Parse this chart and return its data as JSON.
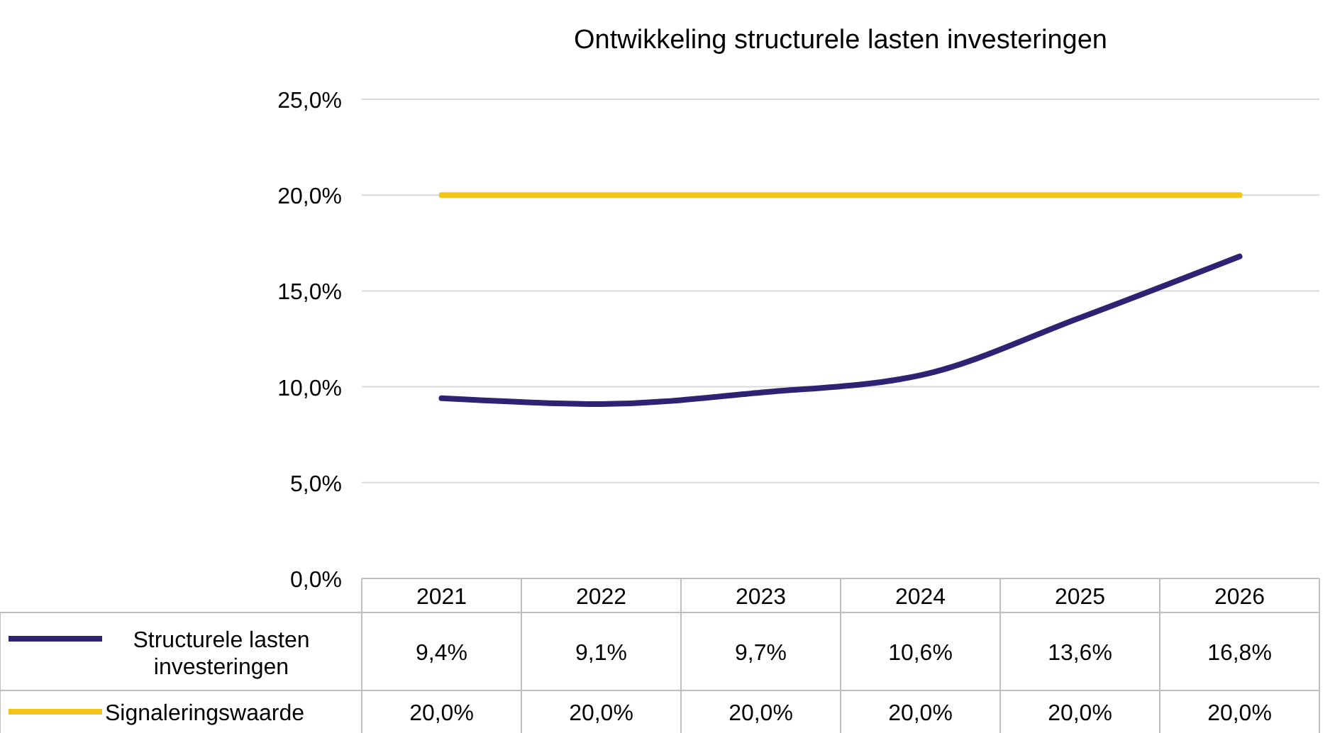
{
  "chart_data": {
    "type": "line",
    "title": "Ontwikkeling structurele lasten investeringen",
    "categories": [
      "2021",
      "2022",
      "2023",
      "2024",
      "2025",
      "2026"
    ],
    "series": [
      {
        "name": "Structurele lasten investeringen",
        "color": "#2e2372",
        "values": [
          9.4,
          9.1,
          9.7,
          10.6,
          13.6,
          16.8
        ],
        "value_labels": [
          "9,4%",
          "9,1%",
          "9,7%",
          "10,6%",
          "13,6%",
          "16,8%"
        ]
      },
      {
        "name": "Signaleringswaarde",
        "color": "#f0c419",
        "values": [
          20,
          20,
          20,
          20,
          20,
          20
        ],
        "value_labels": [
          "20,0%",
          "20,0%",
          "20,0%",
          "20,0%",
          "20,0%",
          "20,0%"
        ]
      }
    ],
    "ylim": [
      0,
      25
    ],
    "yticks": [
      {
        "value": 0,
        "label": "0,0%"
      },
      {
        "value": 5,
        "label": "5,0%"
      },
      {
        "value": 10,
        "label": "10,0%"
      },
      {
        "value": 15,
        "label": "15,0%"
      },
      {
        "value": 20,
        "label": "20,0%"
      },
      {
        "value": 25,
        "label": "25,0%"
      }
    ],
    "grid": "y",
    "legend": "bottom",
    "marker": "none",
    "line_style": "solid"
  }
}
